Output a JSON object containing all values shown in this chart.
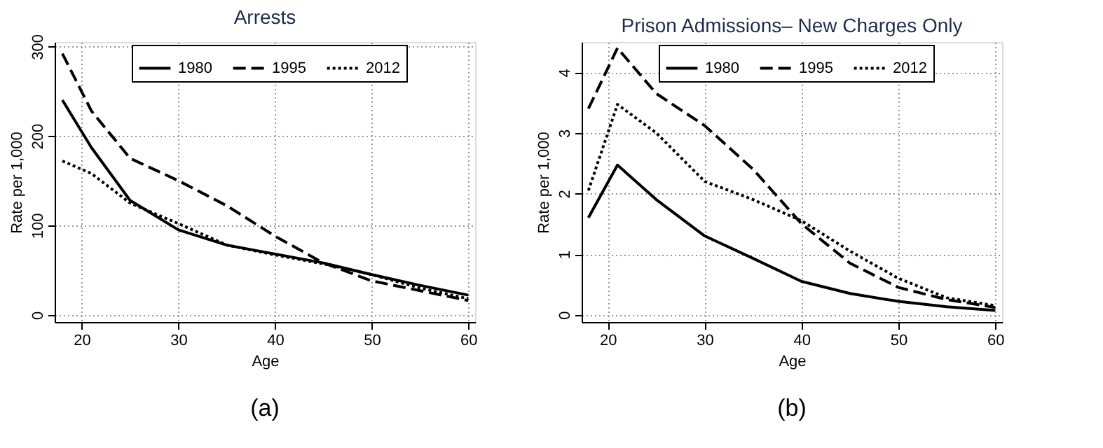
{
  "chart_data": [
    {
      "type": "line",
      "title": "Arrests",
      "xlabel": "Age",
      "ylabel": "Rate per 1,000",
      "x": [
        18,
        21,
        25,
        30,
        35,
        40,
        45,
        50,
        55,
        60
      ],
      "xlim": [
        17.2,
        60.7
      ],
      "xticks": [
        20,
        30,
        40,
        50,
        60
      ],
      "ylim": [
        -8,
        305
      ],
      "yticks": [
        0,
        100,
        200,
        300
      ],
      "grid": true,
      "legend": "top",
      "annotations": [
        "(a)"
      ],
      "series": [
        {
          "name": "1980",
          "color": "#000000",
          "line_style": "solid",
          "values": [
            240,
            187,
            128,
            95,
            78,
            68,
            58,
            45,
            33,
            22
          ]
        },
        {
          "name": "1995",
          "color": "#000000",
          "line_style": "dashed",
          "values": [
            292,
            228,
            175,
            150,
            122,
            88,
            58,
            38,
            27,
            16
          ]
        },
        {
          "name": "2012",
          "color": "#000000",
          "line_style": "dotted",
          "values": [
            172,
            158,
            125,
            102,
            78,
            67,
            57,
            45,
            30,
            18
          ]
        }
      ]
    },
    {
      "type": "line",
      "title": "Prison Admissions– New Charges Only",
      "xlabel": "Age",
      "ylabel": "Rate per 1,000",
      "x": [
        18,
        21,
        25,
        30,
        35,
        40,
        45,
        50,
        55,
        60
      ],
      "xlim": [
        17.3,
        60.7
      ],
      "xticks": [
        20,
        30,
        40,
        50,
        60
      ],
      "ylim": [
        -0.12,
        4.5
      ],
      "yticks": [
        0,
        1,
        2,
        3,
        4
      ],
      "grid": true,
      "legend": "top",
      "annotations": [
        "(b)"
      ],
      "series": [
        {
          "name": "1980",
          "color": "#000000",
          "line_style": "solid",
          "values": [
            1.6,
            2.47,
            1.9,
            1.3,
            0.93,
            0.55,
            0.35,
            0.22,
            0.13,
            0.07
          ]
        },
        {
          "name": "1995",
          "color": "#000000",
          "line_style": "dashed",
          "values": [
            3.4,
            4.4,
            3.65,
            3.12,
            2.4,
            1.5,
            0.85,
            0.45,
            0.25,
            0.12
          ]
        },
        {
          "name": "2012",
          "color": "#000000",
          "line_style": "dotted",
          "values": [
            2.05,
            3.47,
            3.0,
            2.2,
            1.9,
            1.55,
            1.05,
            0.6,
            0.28,
            0.15
          ]
        }
      ]
    }
  ]
}
